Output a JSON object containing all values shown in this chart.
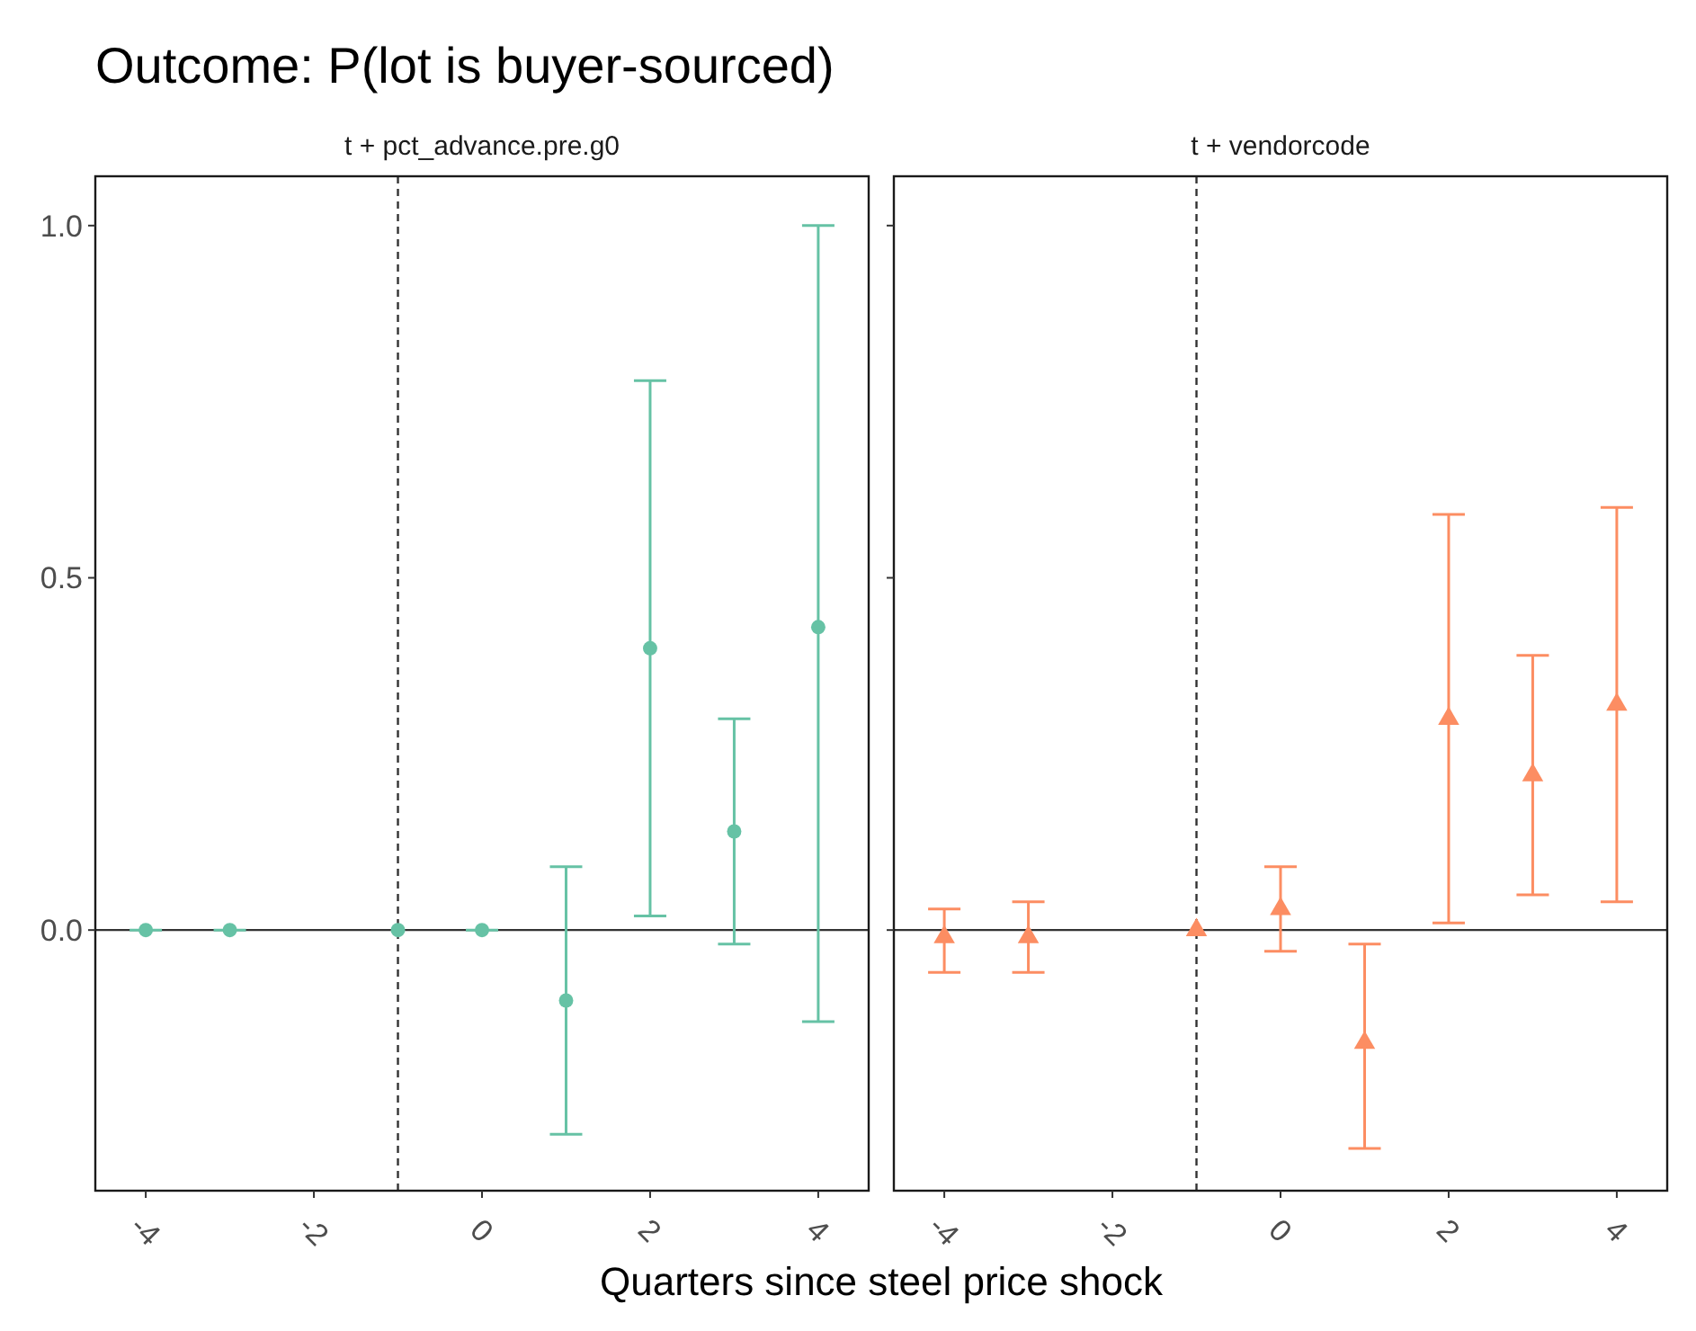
{
  "chart_data": [
    {
      "type": "scatter",
      "title": "Outcome: P(lot is buyer-sourced)",
      "subtitle": "t + pct_advance.pre.g0",
      "xlabel": "Quarters since steel price shock",
      "x": [
        -4,
        -3,
        -1,
        0,
        1,
        2,
        3,
        4
      ],
      "xlim": [
        -4.6,
        4.6
      ],
      "xticks": [
        -4,
        -2,
        0,
        2,
        4
      ],
      "ylim": [
        -0.37,
        1.07
      ],
      "yticks": [
        {
          "value": 0,
          "label": "0.0"
        },
        {
          "value": 0.5,
          "label": "0.5"
        },
        {
          "value": 1,
          "label": "1.0"
        }
      ],
      "series": [
        {
          "color": "#66c2a5",
          "marker": "circle",
          "values": [
            0,
            0,
            0,
            0,
            -0.1,
            0.4,
            0.14,
            0.43
          ],
          "errors": [
            [
              0,
              0
            ],
            [
              0,
              0
            ],
            null,
            [
              0,
              0
            ],
            [
              -0.29,
              0.09
            ],
            [
              0.02,
              0.78
            ],
            [
              -0.02,
              0.3
            ],
            [
              -0.13,
              1.0
            ]
          ]
        }
      ],
      "ref_lines": [
        {
          "axis": "y",
          "value": 0,
          "color": "#333333",
          "line_style": "solid"
        },
        {
          "axis": "x",
          "value": -1,
          "color": "#333333",
          "line_style": "dashed"
        }
      ]
    },
    {
      "type": "scatter",
      "subtitle": "t + vendorcode",
      "x": [
        -4,
        -3,
        -1,
        0,
        1,
        2,
        3,
        4
      ],
      "xlim": [
        -4.6,
        4.6
      ],
      "xticks": [
        -4,
        -2,
        0,
        2,
        4
      ],
      "ylim": [
        -0.37,
        1.07
      ],
      "yticks": [
        {
          "value": 0,
          "label": null
        },
        {
          "value": 0.5,
          "label": null
        },
        {
          "value": 1,
          "label": null
        }
      ],
      "tick_labels": "x",
      "series": [
        {
          "color": "#fc8d62",
          "marker": "triangle",
          "values": [
            -0.01,
            -0.01,
            0,
            0.03,
            -0.16,
            0.3,
            0.22,
            0.32
          ],
          "errors": [
            [
              -0.06,
              0.03
            ],
            [
              -0.06,
              0.04
            ],
            null,
            [
              -0.03,
              0.09
            ],
            [
              -0.31,
              -0.02
            ],
            [
              0.01,
              0.59
            ],
            [
              0.05,
              0.39
            ],
            [
              0.04,
              0.6
            ]
          ]
        }
      ],
      "ref_lines": [
        {
          "axis": "y",
          "value": 0,
          "color": "#333333",
          "line_style": "solid"
        },
        {
          "axis": "x",
          "value": -1,
          "color": "#333333",
          "line_style": "dashed"
        }
      ]
    }
  ]
}
